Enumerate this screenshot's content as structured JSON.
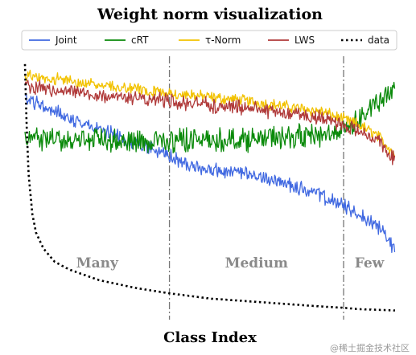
{
  "chart_data": {
    "type": "line",
    "title": "Weight norm visualization",
    "xlabel": "Class Index",
    "ylabel": "",
    "n_classes": 1000,
    "ylim": [
      0,
      1
    ],
    "grid": false,
    "legend_position": "top",
    "boundaries": [
      390,
      860
    ],
    "regions": [
      "Many",
      "Medium",
      "Few"
    ],
    "series": [
      {
        "name": "Joint",
        "color": "#4169e1",
        "style": "solid",
        "x": [
          0,
          100,
          200,
          300,
          390,
          450,
          500,
          600,
          700,
          800,
          860,
          900,
          950,
          980,
          999
        ],
        "y": [
          0.84,
          0.78,
          0.72,
          0.67,
          0.62,
          0.58,
          0.57,
          0.55,
          0.52,
          0.47,
          0.43,
          0.4,
          0.36,
          0.31,
          0.26
        ],
        "noise": 0.022
      },
      {
        "name": "cRT",
        "color": "#0a8a0a",
        "style": "solid",
        "x": [
          0,
          200,
          390,
          600,
          800,
          860,
          900,
          950,
          999
        ],
        "y": [
          0.69,
          0.68,
          0.68,
          0.685,
          0.7,
          0.72,
          0.76,
          0.82,
          0.87
        ],
        "noise": 0.035
      },
      {
        "name": "τ-Norm",
        "color": "#f2c200",
        "style": "solid",
        "x": [
          0,
          200,
          390,
          600,
          800,
          860,
          900,
          950,
          999
        ],
        "y": [
          0.93,
          0.89,
          0.86,
          0.83,
          0.79,
          0.76,
          0.74,
          0.7,
          0.63
        ],
        "noise": 0.018
      },
      {
        "name": "LWS",
        "color": "#b03a3a",
        "style": "solid",
        "x": [
          0,
          200,
          390,
          600,
          800,
          860,
          900,
          950,
          999
        ],
        "y": [
          0.89,
          0.85,
          0.83,
          0.8,
          0.77,
          0.74,
          0.72,
          0.68,
          0.61
        ],
        "noise": 0.022
      },
      {
        "name": "data",
        "color": "#000000",
        "style": "dotted",
        "x": [
          0,
          5,
          10,
          20,
          30,
          50,
          80,
          120,
          200,
          300,
          390,
          500,
          600,
          700,
          800,
          860,
          900,
          999
        ],
        "y": [
          0.97,
          0.72,
          0.55,
          0.4,
          0.33,
          0.27,
          0.22,
          0.19,
          0.15,
          0.12,
          0.1,
          0.08,
          0.07,
          0.06,
          0.05,
          0.045,
          0.04,
          0.035
        ],
        "noise": 0
      }
    ]
  },
  "watermark": "@稀土掘金技术社区"
}
